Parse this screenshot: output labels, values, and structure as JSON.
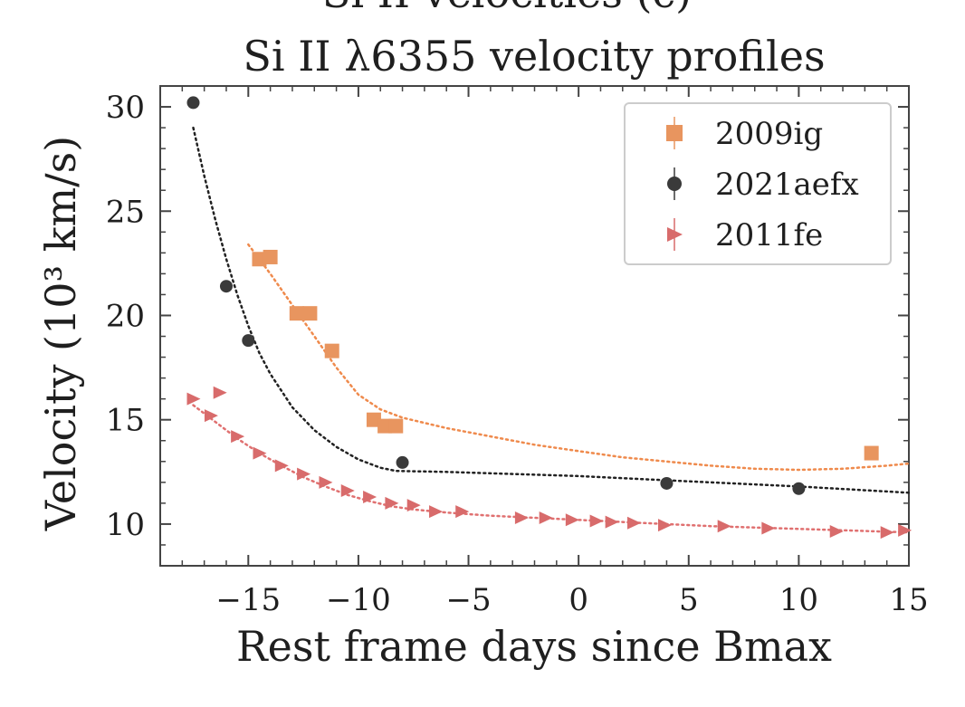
{
  "chart_data": {
    "type": "scatter",
    "top_cutoff_text": "Si II velocities (c)",
    "title": "Si II λ6355 velocity profiles",
    "xlabel": "Rest frame days since Bmax",
    "ylabel": "Velocity (10³ km/s)",
    "xlim": [
      -19,
      15
    ],
    "ylim": [
      8.0,
      31.0
    ],
    "xticks": [
      -15,
      -10,
      -5,
      0,
      5,
      10,
      15
    ],
    "xtick_labels": [
      "−15",
      "−10",
      "−5",
      "0",
      "5",
      "10",
      "15"
    ],
    "yticks": [
      10,
      15,
      20,
      25,
      30
    ],
    "ytick_labels": [
      "10",
      "15",
      "20",
      "25",
      "30"
    ],
    "legend_position": "top-right",
    "series": [
      {
        "name": "2009ig",
        "marker": "square",
        "color": "#e8955f",
        "fit_color": "#ef8a4c",
        "points": [
          {
            "x": -14.5,
            "y": 22.7
          },
          {
            "x": -14.0,
            "y": 22.8
          },
          {
            "x": -12.8,
            "y": 20.1
          },
          {
            "x": -12.2,
            "y": 20.1
          },
          {
            "x": -11.2,
            "y": 18.3
          },
          {
            "x": -9.3,
            "y": 15.0
          },
          {
            "x": -8.8,
            "y": 14.7
          },
          {
            "x": -8.3,
            "y": 14.7
          },
          {
            "x": 13.3,
            "y": 13.4
          }
        ],
        "fit": [
          {
            "x": -15.0,
            "y": 23.4
          },
          {
            "x": -14.0,
            "y": 22.0
          },
          {
            "x": -13.0,
            "y": 20.5
          },
          {
            "x": -12.0,
            "y": 19.0
          },
          {
            "x": -11.0,
            "y": 17.5
          },
          {
            "x": -10.0,
            "y": 16.2
          },
          {
            "x": -9.0,
            "y": 15.5
          },
          {
            "x": -8.0,
            "y": 15.1
          },
          {
            "x": -6.0,
            "y": 14.6
          },
          {
            "x": -4.0,
            "y": 14.2
          },
          {
            "x": -2.0,
            "y": 13.8
          },
          {
            "x": 0.0,
            "y": 13.5
          },
          {
            "x": 2.0,
            "y": 13.2
          },
          {
            "x": 4.0,
            "y": 13.0
          },
          {
            "x": 6.0,
            "y": 12.8
          },
          {
            "x": 8.0,
            "y": 12.65
          },
          {
            "x": 10.0,
            "y": 12.6
          },
          {
            "x": 12.0,
            "y": 12.65
          },
          {
            "x": 14.0,
            "y": 12.8
          },
          {
            "x": 15.0,
            "y": 12.9
          }
        ]
      },
      {
        "name": "2021aefx",
        "marker": "circle",
        "color": "#3a3a3a",
        "fit_color": "#222222",
        "points": [
          {
            "x": -17.5,
            "y": 30.2
          },
          {
            "x": -16.0,
            "y": 21.4
          },
          {
            "x": -15.0,
            "y": 18.8
          },
          {
            "x": -8.0,
            "y": 12.95
          },
          {
            "x": 4.0,
            "y": 11.95
          },
          {
            "x": 10.0,
            "y": 11.7
          }
        ],
        "fit": [
          {
            "x": -17.5,
            "y": 29.0
          },
          {
            "x": -17.0,
            "y": 26.7
          },
          {
            "x": -16.5,
            "y": 24.6
          },
          {
            "x": -16.0,
            "y": 22.7
          },
          {
            "x": -15.5,
            "y": 21.0
          },
          {
            "x": -15.0,
            "y": 19.5
          },
          {
            "x": -14.5,
            "y": 18.2
          },
          {
            "x": -14.0,
            "y": 17.2
          },
          {
            "x": -13.0,
            "y": 15.6
          },
          {
            "x": -12.0,
            "y": 14.5
          },
          {
            "x": -11.0,
            "y": 13.7
          },
          {
            "x": -10.0,
            "y": 13.1
          },
          {
            "x": -9.0,
            "y": 12.7
          },
          {
            "x": -8.3,
            "y": 12.55
          },
          {
            "x": -6.0,
            "y": 12.5
          },
          {
            "x": 0.0,
            "y": 12.3
          },
          {
            "x": 5.0,
            "y": 12.05
          },
          {
            "x": 10.0,
            "y": 11.8
          },
          {
            "x": 15.0,
            "y": 11.5
          }
        ]
      },
      {
        "name": "2011fe",
        "marker": "triangle-right",
        "color": "#d86b6b",
        "fit_color": "#e07070",
        "points": [
          {
            "x": -17.5,
            "y": 16.0
          },
          {
            "x": -16.7,
            "y": 15.2
          },
          {
            "x": -16.3,
            "y": 16.3
          },
          {
            "x": -15.5,
            "y": 14.2
          },
          {
            "x": -14.5,
            "y": 13.4
          },
          {
            "x": -13.5,
            "y": 12.8
          },
          {
            "x": -12.5,
            "y": 12.4
          },
          {
            "x": -11.5,
            "y": 12.0
          },
          {
            "x": -10.5,
            "y": 11.6
          },
          {
            "x": -9.5,
            "y": 11.3
          },
          {
            "x": -8.5,
            "y": 11.0
          },
          {
            "x": -7.5,
            "y": 10.9
          },
          {
            "x": -6.5,
            "y": 10.6
          },
          {
            "x": -5.3,
            "y": 10.6
          },
          {
            "x": -2.6,
            "y": 10.3
          },
          {
            "x": -1.5,
            "y": 10.3
          },
          {
            "x": -0.3,
            "y": 10.2
          },
          {
            "x": 0.8,
            "y": 10.15
          },
          {
            "x": 1.5,
            "y": 10.1
          },
          {
            "x": 2.5,
            "y": 10.05
          },
          {
            "x": 3.9,
            "y": 9.95
          },
          {
            "x": 6.6,
            "y": 9.9
          },
          {
            "x": 8.6,
            "y": 9.8
          },
          {
            "x": 11.7,
            "y": 9.65
          },
          {
            "x": 14.0,
            "y": 9.6
          },
          {
            "x": 14.8,
            "y": 9.7
          }
        ],
        "fit": [
          {
            "x": -17.5,
            "y": 15.7
          },
          {
            "x": -16.5,
            "y": 14.9
          },
          {
            "x": -15.5,
            "y": 14.1
          },
          {
            "x": -14.5,
            "y": 13.4
          },
          {
            "x": -13.5,
            "y": 12.8
          },
          {
            "x": -12.5,
            "y": 12.25
          },
          {
            "x": -11.5,
            "y": 11.8
          },
          {
            "x": -10.5,
            "y": 11.4
          },
          {
            "x": -9.5,
            "y": 11.1
          },
          {
            "x": -8.5,
            "y": 10.85
          },
          {
            "x": -7.5,
            "y": 10.7
          },
          {
            "x": -6.0,
            "y": 10.55
          },
          {
            "x": -4.0,
            "y": 10.4
          },
          {
            "x": -2.0,
            "y": 10.3
          },
          {
            "x": 0.0,
            "y": 10.2
          },
          {
            "x": 3.0,
            "y": 10.05
          },
          {
            "x": 6.0,
            "y": 9.9
          },
          {
            "x": 9.0,
            "y": 9.8
          },
          {
            "x": 12.0,
            "y": 9.7
          },
          {
            "x": 15.0,
            "y": 9.6
          }
        ]
      }
    ]
  }
}
